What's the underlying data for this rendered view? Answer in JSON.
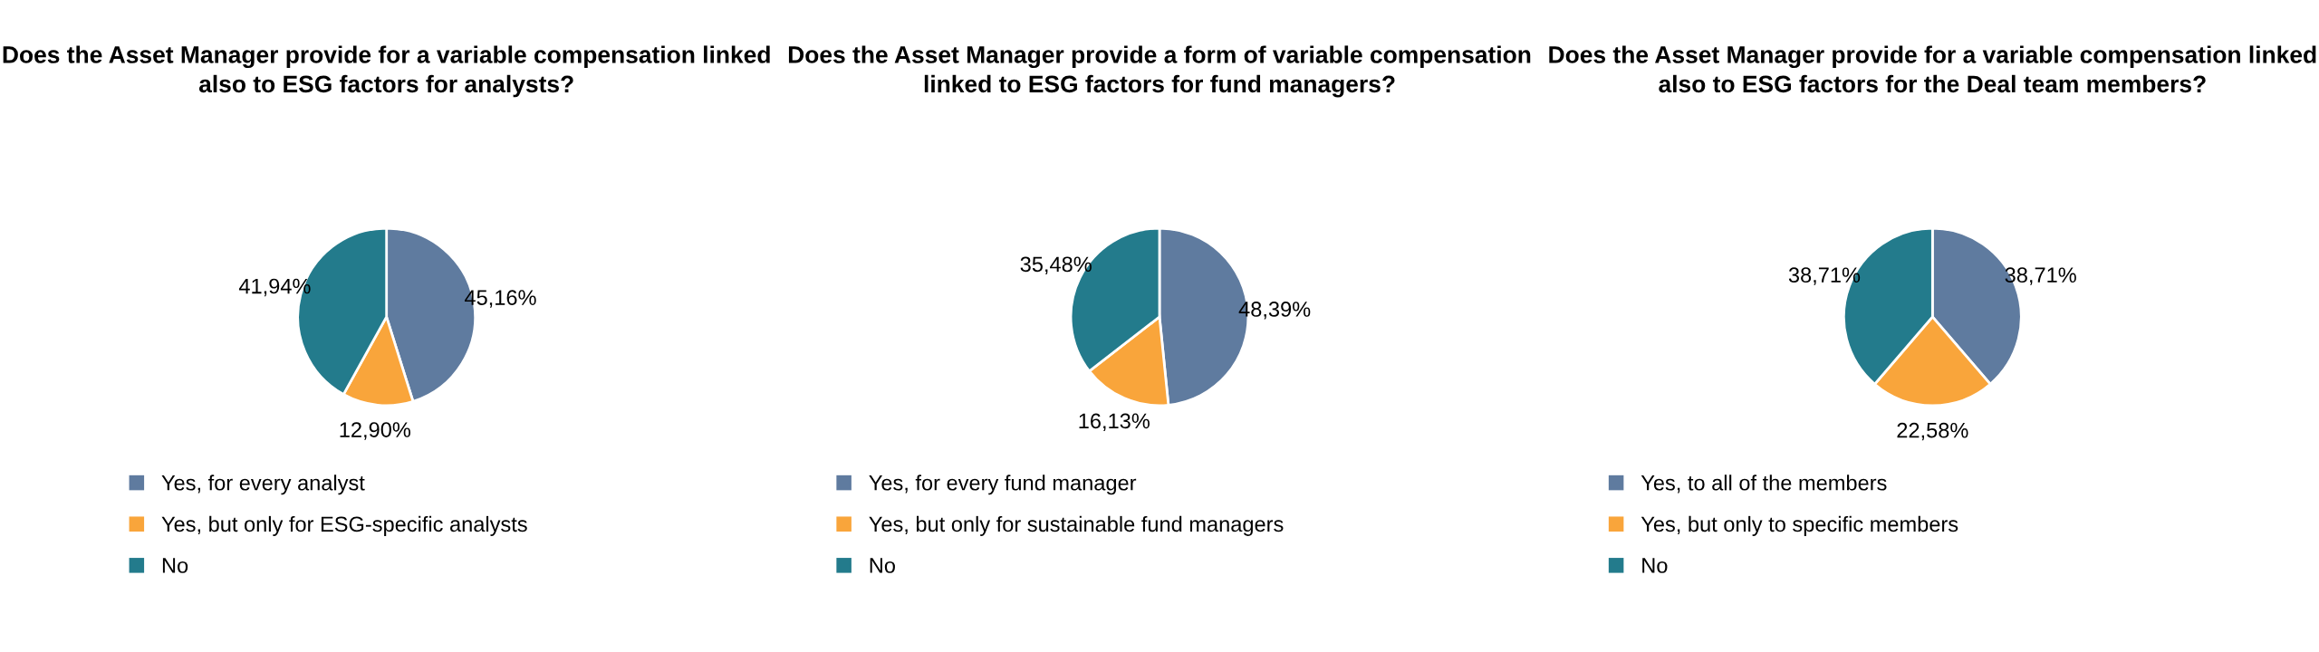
{
  "chart_data": [
    {
      "type": "pie",
      "title": "Does the Asset Manager provide for a variable compensation linked also to ESG factors for analysts?",
      "categories": [
        "Yes, for every analyst",
        "Yes, but only for ESG-specific analysts",
        "No"
      ],
      "values": [
        45.16,
        12.9,
        41.94
      ],
      "value_labels": [
        "45,16%",
        "12,90%",
        "41,94%"
      ],
      "colors": [
        "#5f7b9f",
        "#f9a53b",
        "#237b8c"
      ],
      "legend": "bottom"
    },
    {
      "type": "pie",
      "title": "Does the Asset Manager provide a form of variable compensation linked to ESG factors for fund managers?",
      "categories": [
        "Yes, for every fund manager",
        "Yes, but only for sustainable fund managers",
        "No"
      ],
      "values": [
        48.39,
        16.13,
        35.48
      ],
      "value_labels": [
        "48,39%",
        "16,13%",
        "35,48%"
      ],
      "colors": [
        "#5f7b9f",
        "#f9a53b",
        "#237b8c"
      ],
      "legend": "bottom"
    },
    {
      "type": "pie",
      "title": "Does the Asset Manager provide for a variable compensation linked also to ESG factors for the Deal team members?",
      "categories": [
        "Yes, to all of the members",
        "Yes, but only to specific members",
        "No"
      ],
      "values": [
        38.71,
        22.58,
        38.71
      ],
      "value_labels": [
        "38,71%",
        "22,58%",
        "38,71%"
      ],
      "colors": [
        "#5f7b9f",
        "#f9a53b",
        "#237b8c"
      ],
      "legend": "bottom"
    }
  ]
}
